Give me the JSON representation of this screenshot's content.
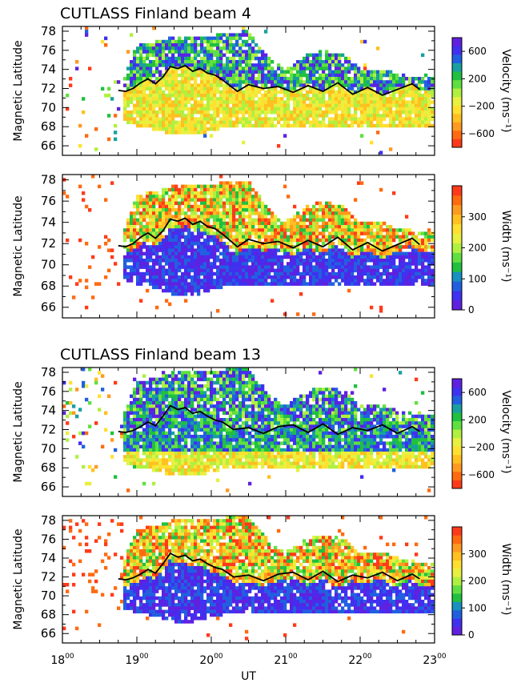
{
  "chart_data": [
    {
      "type": "heatmap",
      "title": "CUTLASS Finland beam 4",
      "ylabel": "Magnetic Latitude",
      "colorbar": {
        "label": "Velocity (ms⁻¹)",
        "ticks": [
          "600",
          "200",
          "−200",
          "−600"
        ],
        "range": [
          -800,
          800
        ]
      },
      "ylim": [
        65,
        78.5
      ],
      "yticks": [
        66,
        68,
        70,
        72,
        74,
        76,
        78
      ],
      "xlim": [
        18,
        23
      ],
      "boundary_line": {
        "x": [
          18.75,
          18.85,
          18.95,
          19.05,
          19.15,
          19.25,
          19.35,
          19.45,
          19.55,
          19.65,
          19.75,
          19.85,
          19.95,
          20.05,
          20.15,
          20.25,
          20.35,
          20.5,
          20.7,
          20.9,
          21.1,
          21.3,
          21.5,
          21.7,
          21.9,
          22.1,
          22.3,
          22.5,
          22.7,
          22.8
        ],
        "y": [
          71.8,
          71.7,
          72.0,
          72.6,
          73.0,
          72.5,
          73.2,
          74.3,
          74.1,
          74.4,
          73.8,
          74.1,
          73.6,
          73.4,
          72.9,
          72.3,
          71.7,
          72.4,
          72.0,
          72.2,
          71.6,
          72.3,
          71.7,
          72.6,
          71.4,
          72.1,
          71.3,
          71.9,
          72.5,
          71.9
        ]
      },
      "density_profile": {
        "x": [
          18.0,
          18.5,
          18.8,
          19.0,
          19.3,
          19.5,
          19.8,
          20.0,
          20.3,
          20.5,
          20.8,
          21.0,
          21.3,
          21.5,
          21.8,
          22.0,
          22.3,
          22.5,
          22.8,
          23.0
        ],
        "lower": [
          69.5,
          69.5,
          68.5,
          68.0,
          67.5,
          67.0,
          67.0,
          67.5,
          68.0,
          68.0,
          68.0,
          68.0,
          68.0,
          68.0,
          68.0,
          68.0,
          68.0,
          68.0,
          68.0,
          68.0
        ],
        "upper": [
          72.0,
          72.0,
          72.5,
          76.5,
          77.0,
          77.5,
          77.5,
          77.5,
          78.0,
          78.0,
          75.0,
          74.0,
          75.5,
          76.0,
          75.5,
          74.0,
          74.0,
          73.5,
          73.0,
          73.0
        ]
      }
    },
    {
      "type": "heatmap",
      "title": "",
      "ylabel": "Magnetic Latitude",
      "colorbar": {
        "label": "Width (ms⁻¹)",
        "ticks": [
          "300",
          "200",
          "100",
          "0"
        ],
        "range": [
          0,
          400
        ]
      },
      "ylim": [
        65,
        78.5
      ],
      "yticks": [
        66,
        68,
        70,
        72,
        74,
        76,
        78
      ],
      "xlim": [
        18,
        23
      ],
      "boundary_line": {
        "x": [
          18.75,
          18.85,
          18.95,
          19.05,
          19.15,
          19.25,
          19.35,
          19.45,
          19.55,
          19.65,
          19.75,
          19.85,
          19.95,
          20.05,
          20.15,
          20.25,
          20.35,
          20.5,
          20.7,
          20.9,
          21.1,
          21.3,
          21.5,
          21.7,
          21.9,
          22.1,
          22.3,
          22.5,
          22.7,
          22.8
        ],
        "y": [
          71.8,
          71.7,
          72.0,
          72.6,
          73.0,
          72.5,
          73.2,
          74.3,
          74.1,
          74.4,
          73.8,
          74.1,
          73.6,
          73.4,
          72.9,
          72.3,
          71.7,
          72.4,
          72.0,
          72.2,
          71.6,
          72.3,
          71.7,
          72.6,
          71.4,
          72.1,
          71.3,
          71.9,
          72.5,
          71.9
        ]
      }
    },
    {
      "type": "heatmap",
      "title": "CUTLASS Finland beam 13",
      "ylabel": "Magnetic Latitude",
      "colorbar": {
        "label": "Velocity (ms⁻¹)",
        "ticks": [
          "600",
          "200",
          "−200",
          "−600"
        ],
        "range": [
          -800,
          800
        ]
      },
      "ylim": [
        65,
        78.5
      ],
      "yticks": [
        66,
        68,
        70,
        72,
        74,
        76,
        78
      ],
      "xlim": [
        18,
        23
      ],
      "boundary_line": {
        "x": [
          18.75,
          18.85,
          18.95,
          19.05,
          19.15,
          19.25,
          19.35,
          19.45,
          19.55,
          19.65,
          19.75,
          19.85,
          19.95,
          20.05,
          20.15,
          20.3,
          20.5,
          20.7,
          20.9,
          21.1,
          21.3,
          21.5,
          21.7,
          21.9,
          22.1,
          22.3,
          22.5,
          22.7,
          22.8
        ],
        "y": [
          71.8,
          71.7,
          71.9,
          72.3,
          72.8,
          72.4,
          73.4,
          74.5,
          74.1,
          74.3,
          73.7,
          73.9,
          73.4,
          73.0,
          72.8,
          72.0,
          72.2,
          71.6,
          72.3,
          72.5,
          71.7,
          72.6,
          71.5,
          72.2,
          71.9,
          72.5,
          71.6,
          72.3,
          71.8
        ]
      }
    },
    {
      "type": "heatmap",
      "title": "",
      "ylabel": "Magnetic Latitude",
      "colorbar": {
        "label": "Width (ms⁻¹)",
        "ticks": [
          "300",
          "200",
          "100",
          "0"
        ],
        "range": [
          0,
          400
        ]
      },
      "ylim": [
        65,
        78.5
      ],
      "yticks": [
        66,
        68,
        70,
        72,
        74,
        76,
        78
      ],
      "xlim": [
        18,
        23
      ],
      "xlabel": "UT",
      "xticks": [
        "18",
        "19",
        "20",
        "21",
        "22",
        "23"
      ],
      "xtick_sup": "00",
      "boundary_line": {
        "x": [
          18.75,
          18.85,
          18.95,
          19.05,
          19.15,
          19.25,
          19.35,
          19.45,
          19.55,
          19.65,
          19.75,
          19.85,
          19.95,
          20.05,
          20.15,
          20.3,
          20.5,
          20.7,
          20.9,
          21.1,
          21.3,
          21.5,
          21.7,
          21.9,
          22.1,
          22.3,
          22.5,
          22.7,
          22.8
        ],
        "y": [
          71.8,
          71.7,
          71.9,
          72.3,
          72.8,
          72.4,
          73.4,
          74.5,
          74.1,
          74.3,
          73.7,
          73.9,
          73.4,
          73.0,
          72.8,
          72.0,
          72.2,
          71.6,
          72.3,
          72.5,
          71.7,
          72.6,
          71.5,
          72.2,
          71.9,
          72.5,
          71.6,
          72.3,
          71.8
        ]
      }
    }
  ],
  "colors": {
    "velocity_scale": [
      "#ff3a1a",
      "#ff6a10",
      "#ff9a20",
      "#ffc020",
      "#ffe030",
      "#e8f040",
      "#b0f040",
      "#60e040",
      "#20c040",
      "#18a0a0",
      "#2060e0",
      "#4030f0",
      "#6020e0"
    ],
    "width_scale": [
      "#6020e0",
      "#4030f0",
      "#2060e0",
      "#1890c0",
      "#20c040",
      "#60e040",
      "#b0f040",
      "#e8f040",
      "#ffe030",
      "#ffc020",
      "#ff9a20",
      "#ff6a10",
      "#ff3a1a"
    ],
    "line": "#000000"
  }
}
